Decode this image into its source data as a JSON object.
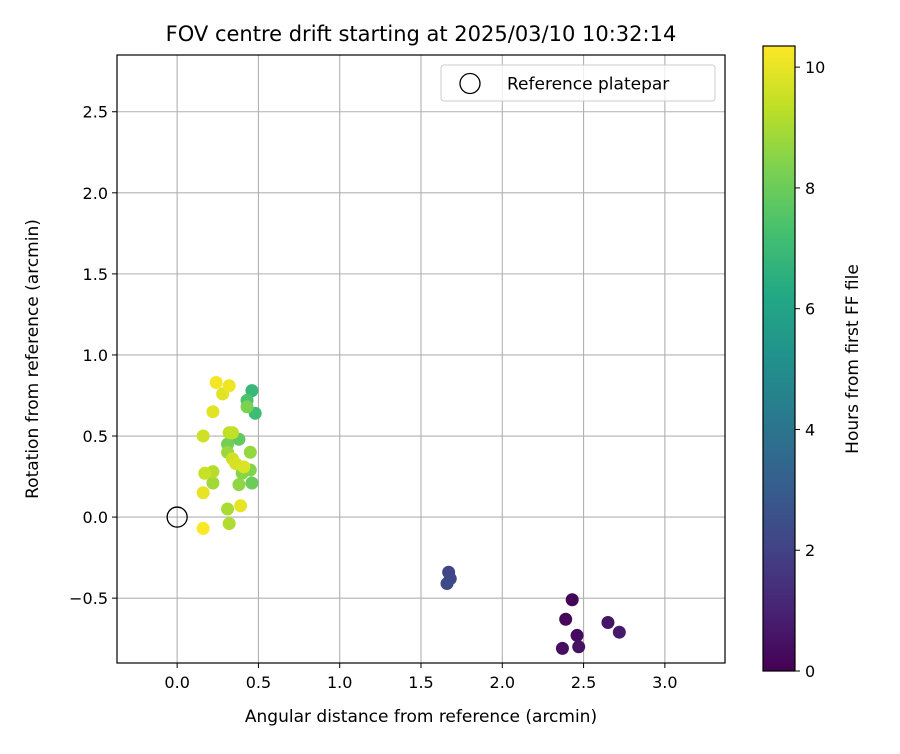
{
  "chart_data": {
    "type": "scatter",
    "title": "FOV centre drift starting at 2025/03/10 10:32:14",
    "xlabel": "Angular distance from reference (arcmin)",
    "ylabel": "Rotation from reference (arcmin)",
    "xlim": [
      -0.37,
      3.37
    ],
    "ylim": [
      -0.9,
      2.85
    ],
    "xticks": [
      0.0,
      0.5,
      1.0,
      1.5,
      2.0,
      2.5,
      3.0
    ],
    "xtick_labels": [
      "0.0",
      "0.5",
      "1.0",
      "1.5",
      "2.0",
      "2.5",
      "3.0"
    ],
    "yticks": [
      -0.5,
      0.0,
      0.5,
      1.0,
      1.5,
      2.0,
      2.5
    ],
    "ytick_labels": [
      "−0.5",
      "0.0",
      "0.5",
      "1.0",
      "1.5",
      "2.0",
      "2.5"
    ],
    "grid": true,
    "legend": {
      "position": "top-right",
      "entries": [
        "Reference platepar"
      ]
    },
    "reference_point": {
      "x": 0.0,
      "y": 0.0,
      "label": "Reference platepar"
    },
    "colorbar": {
      "label": "Hours from first FF file",
      "colormap": "viridis",
      "range": [
        0,
        10.35
      ],
      "ticks": [
        0,
        2,
        4,
        6,
        8,
        10
      ],
      "tick_labels": [
        "0",
        "2",
        "4",
        "6",
        "8",
        "10"
      ]
    },
    "points": [
      {
        "x": 2.43,
        "y": -0.51,
        "hours": 0.1
      },
      {
        "x": 2.39,
        "y": -0.63,
        "hours": 0.2
      },
      {
        "x": 2.46,
        "y": -0.73,
        "hours": 0.3
      },
      {
        "x": 2.37,
        "y": -0.81,
        "hours": 0.4
      },
      {
        "x": 2.47,
        "y": -0.8,
        "hours": 0.5
      },
      {
        "x": 2.65,
        "y": -0.65,
        "hours": 0.6
      },
      {
        "x": 2.72,
        "y": -0.71,
        "hours": 0.7
      },
      {
        "x": 1.67,
        "y": -0.34,
        "hours": 2.1
      },
      {
        "x": 1.68,
        "y": -0.38,
        "hours": 2.2
      },
      {
        "x": 1.66,
        "y": -0.41,
        "hours": 2.3
      },
      {
        "x": 0.46,
        "y": 0.78,
        "hours": 6.9
      },
      {
        "x": 0.48,
        "y": 0.64,
        "hours": 7.1
      },
      {
        "x": 0.43,
        "y": 0.72,
        "hours": 7.4
      },
      {
        "x": 0.38,
        "y": 0.48,
        "hours": 7.8
      },
      {
        "x": 0.46,
        "y": 0.21,
        "hours": 8.0
      },
      {
        "x": 0.31,
        "y": 0.45,
        "hours": 8.1
      },
      {
        "x": 0.43,
        "y": 0.68,
        "hours": 8.3
      },
      {
        "x": 0.45,
        "y": 0.29,
        "hours": 8.4
      },
      {
        "x": 0.4,
        "y": 0.27,
        "hours": 8.5
      },
      {
        "x": 0.38,
        "y": 0.2,
        "hours": 8.6
      },
      {
        "x": 0.45,
        "y": 0.4,
        "hours": 8.7
      },
      {
        "x": 0.31,
        "y": 0.4,
        "hours": 8.8
      },
      {
        "x": 0.22,
        "y": 0.21,
        "hours": 8.9
      },
      {
        "x": 0.31,
        "y": 0.05,
        "hours": 9.0
      },
      {
        "x": 0.32,
        "y": -0.04,
        "hours": 9.1
      },
      {
        "x": 0.22,
        "y": 0.28,
        "hours": 9.2
      },
      {
        "x": 0.32,
        "y": 0.52,
        "hours": 9.3
      },
      {
        "x": 0.34,
        "y": 0.52,
        "hours": 9.4
      },
      {
        "x": 0.17,
        "y": 0.27,
        "hours": 9.5
      },
      {
        "x": 0.16,
        "y": 0.5,
        "hours": 9.6
      },
      {
        "x": 0.34,
        "y": 0.36,
        "hours": 9.6
      },
      {
        "x": 0.36,
        "y": 0.33,
        "hours": 9.7
      },
      {
        "x": 0.41,
        "y": 0.31,
        "hours": 9.8
      },
      {
        "x": 0.28,
        "y": 0.76,
        "hours": 9.9
      },
      {
        "x": 0.22,
        "y": 0.65,
        "hours": 9.9
      },
      {
        "x": 0.16,
        "y": 0.15,
        "hours": 10.0
      },
      {
        "x": 0.39,
        "y": 0.07,
        "hours": 10.0
      },
      {
        "x": 0.32,
        "y": 0.81,
        "hours": 10.1
      },
      {
        "x": 0.24,
        "y": 0.83,
        "hours": 10.2
      },
      {
        "x": 0.16,
        "y": -0.07,
        "hours": 10.3
      }
    ]
  }
}
